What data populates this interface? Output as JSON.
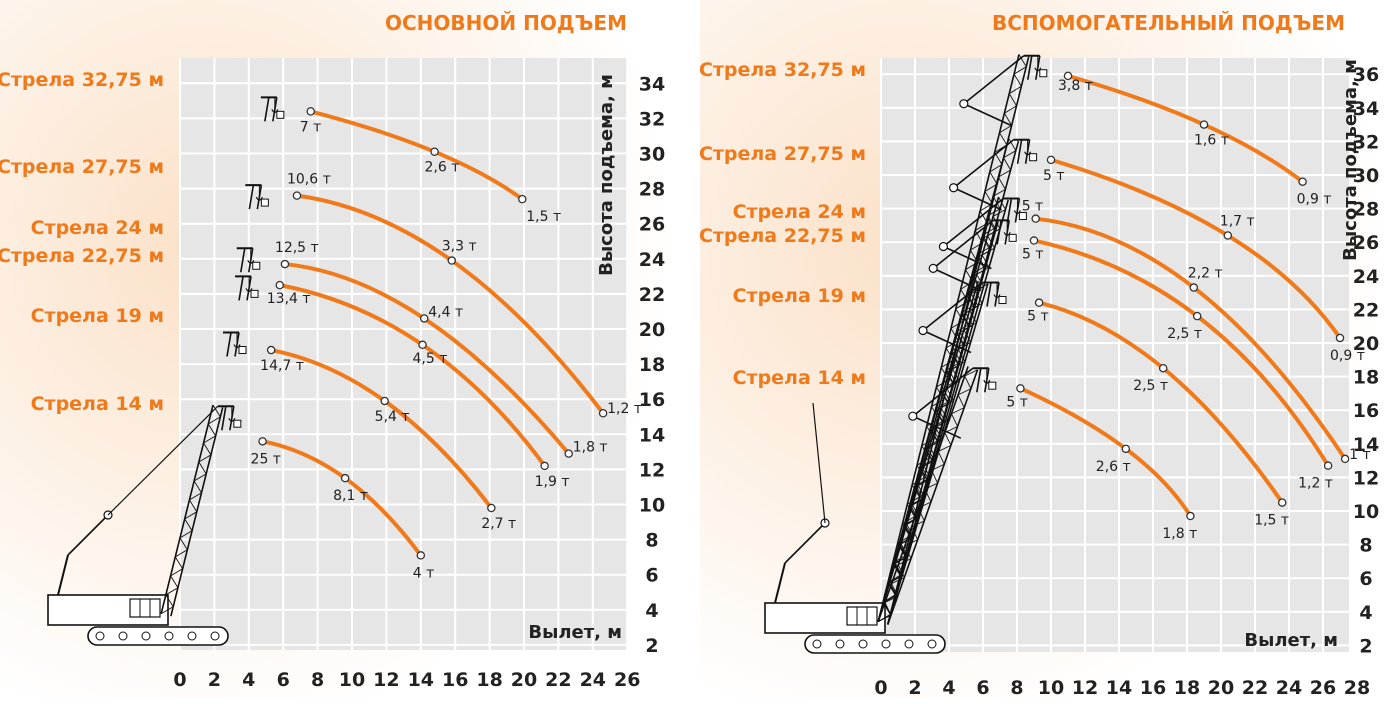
{
  "chart_data": [
    {
      "type": "line",
      "title": "ОСНОВНОЙ ПОДЪЕМ",
      "xlabel": "Вылет, м",
      "ylabel": "Высота подъема, м",
      "xlim": [
        0,
        26
      ],
      "ylim": [
        0,
        35
      ],
      "x_ticks": [
        "0",
        "2",
        "4",
        "6",
        "8",
        "10",
        "12",
        "14",
        "16",
        "18",
        "20",
        "22",
        "24",
        "26"
      ],
      "y_ticks": [
        "2",
        "4",
        "6",
        "8",
        "10",
        "12",
        "14",
        "16",
        "18",
        "20",
        "22",
        "24",
        "26",
        "28",
        "30",
        "32",
        "34"
      ],
      "grid": true,
      "series": [
        {
          "name": "Стрела 32,75 м",
          "points": [
            {
              "x": 7.6,
              "y": 32.4,
              "label": "7 т"
            },
            {
              "x": 14.8,
              "y": 30.1,
              "label": "2,6 т"
            },
            {
              "x": 19.9,
              "y": 27.4,
              "label": "1,5 т"
            }
          ]
        },
        {
          "name": "Стрела 27,75 м",
          "points": [
            {
              "x": 6.8,
              "y": 27.6,
              "label": "10,6 т"
            },
            {
              "x": 15.8,
              "y": 23.9,
              "label": "3,3 т"
            },
            {
              "x": 24.6,
              "y": 15.2,
              "label": "1,2 т"
            }
          ]
        },
        {
          "name": "Стрела 24 м",
          "points": [
            {
              "x": 6.1,
              "y": 23.7,
              "label": "12,5 т"
            },
            {
              "x": 14.2,
              "y": 20.6,
              "label": "4,4 т"
            },
            {
              "x": 22.6,
              "y": 12.9,
              "label": "1,8 т"
            }
          ]
        },
        {
          "name": "Стрела 22,75 м",
          "points": [
            {
              "x": 5.8,
              "y": 22.5,
              "label": "13,4 т"
            },
            {
              "x": 14.1,
              "y": 19.1,
              "label": "4,5 т"
            },
            {
              "x": 21.2,
              "y": 12.2,
              "label": "1,9 т"
            }
          ]
        },
        {
          "name": "Стрела 19 м",
          "points": [
            {
              "x": 5.3,
              "y": 18.8,
              "label": "14,7 т"
            },
            {
              "x": 11.9,
              "y": 15.9,
              "label": "5,4 т"
            },
            {
              "x": 18.1,
              "y": 9.8,
              "label": "2,7 т"
            }
          ]
        },
        {
          "name": "Стрела 14 м",
          "points": [
            {
              "x": 4.8,
              "y": 13.6,
              "label": "25 т"
            },
            {
              "x": 9.6,
              "y": 11.5,
              "label": "8,1 т"
            },
            {
              "x": 14.0,
              "y": 7.1,
              "label": "4 т"
            }
          ]
        }
      ]
    },
    {
      "type": "line",
      "title": "ВСПОМОГАТЕЛЬНЫЙ ПОДЪЕМ",
      "xlabel": "Вылет, м",
      "ylabel": "Высота подъема, м",
      "xlim": [
        0,
        28
      ],
      "ylim": [
        0,
        37
      ],
      "x_ticks": [
        "0",
        "2",
        "4",
        "6",
        "8",
        "10",
        "12",
        "14",
        "16",
        "18",
        "20",
        "22",
        "24",
        "26",
        "28"
      ],
      "y_ticks": [
        "2",
        "4",
        "6",
        "8",
        "10",
        "12",
        "14",
        "16",
        "18",
        "20",
        "22",
        "24",
        "26",
        "28",
        "30",
        "32",
        "34",
        "36"
      ],
      "grid": true,
      "series": [
        {
          "name": "Стрела 32,75 м",
          "points": [
            {
              "x": 11.0,
              "y": 35.9,
              "label": "3,8 т"
            },
            {
              "x": 19.0,
              "y": 33.0,
              "label": "1,6 т"
            },
            {
              "x": 24.8,
              "y": 29.6,
              "label": "0,9 т"
            }
          ]
        },
        {
          "name": "Стрела 27,75 м",
          "points": [
            {
              "x": 10.0,
              "y": 30.9,
              "label": "5 т"
            },
            {
              "x": 20.4,
              "y": 26.4,
              "label": "1,7 т"
            },
            {
              "x": 27.0,
              "y": 20.3,
              "label": "0,9 т"
            }
          ]
        },
        {
          "name": "Стрела 24 м",
          "points": [
            {
              "x": 9.1,
              "y": 27.4,
              "label": "5 т"
            },
            {
              "x": 18.4,
              "y": 23.3,
              "label": "2,2 т"
            },
            {
              "x": 27.3,
              "y": 13.1,
              "label": "1 т"
            }
          ]
        },
        {
          "name": "Стрела 22,75 м",
          "points": [
            {
              "x": 9.0,
              "y": 26.1,
              "label": "5 т"
            },
            {
              "x": 18.6,
              "y": 21.6,
              "label": "2,5 т"
            },
            {
              "x": 26.3,
              "y": 12.7,
              "label": "1,2 т"
            }
          ]
        },
        {
          "name": "Стрела 19 м",
          "points": [
            {
              "x": 9.3,
              "y": 22.4,
              "label": "5 т"
            },
            {
              "x": 16.6,
              "y": 18.5,
              "label": "2,5 т"
            },
            {
              "x": 23.6,
              "y": 10.5,
              "label": "1,5 т"
            }
          ]
        },
        {
          "name": "Стрела 14 м",
          "points": [
            {
              "x": 8.2,
              "y": 17.3,
              "label": "5 т"
            },
            {
              "x": 14.4,
              "y": 13.7,
              "label": "2,6 т"
            },
            {
              "x": 18.2,
              "y": 9.7,
              "label": "1,8 т"
            }
          ]
        }
      ]
    }
  ],
  "colors": {
    "accent": "#f07a1a",
    "grid_cell": "#e6e6e6",
    "grid_line": "#ffffff",
    "crane": "#111111"
  }
}
